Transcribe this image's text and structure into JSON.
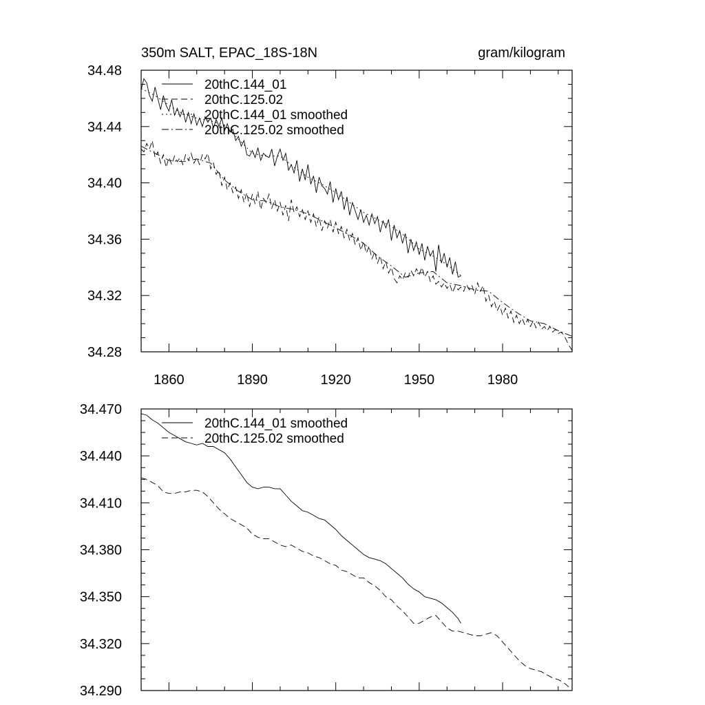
{
  "chart_data": [
    {
      "type": "line",
      "title": "350m SALT, EPAC_18S-18N",
      "units": "gram/kilogram",
      "xlim": [
        1850,
        2005
      ],
      "ylim": [
        34.28,
        34.48
      ],
      "xticks": [
        1860,
        1890,
        1920,
        1950,
        1980
      ],
      "yticks": [
        34.28,
        34.32,
        34.36,
        34.4,
        34.44,
        34.48
      ],
      "ytick_labels": [
        "34.28",
        "34.32",
        "34.36",
        "34.40",
        "34.44",
        "34.48"
      ],
      "xtick_labels": [
        "1860",
        "1890",
        "1920",
        "1950",
        "1980"
      ],
      "legend_position": "top-left",
      "series": [
        {
          "name": "20thC.144_01",
          "style": "solid",
          "x": [
            1850,
            1851,
            1852,
            1853,
            1854,
            1855,
            1856,
            1857,
            1858,
            1859,
            1860,
            1861,
            1862,
            1863,
            1864,
            1865,
            1866,
            1867,
            1868,
            1869,
            1870,
            1871,
            1872,
            1873,
            1874,
            1875,
            1876,
            1877,
            1878,
            1879,
            1880,
            1881,
            1882,
            1883,
            1884,
            1885,
            1886,
            1887,
            1888,
            1889,
            1890,
            1891,
            1892,
            1893,
            1894,
            1895,
            1896,
            1897,
            1898,
            1899,
            1900,
            1901,
            1902,
            1903,
            1904,
            1905,
            1906,
            1907,
            1908,
            1909,
            1910,
            1911,
            1912,
            1913,
            1914,
            1915,
            1916,
            1917,
            1918,
            1919,
            1920,
            1921,
            1922,
            1923,
            1924,
            1925,
            1926,
            1927,
            1928,
            1929,
            1930,
            1931,
            1932,
            1933,
            1934,
            1935,
            1936,
            1937,
            1938,
            1939,
            1940,
            1941,
            1942,
            1943,
            1944,
            1945,
            1946,
            1947,
            1948,
            1949,
            1950,
            1951,
            1952,
            1953,
            1954,
            1955,
            1956,
            1957,
            1958,
            1959,
            1960,
            1961,
            1962,
            1963,
            1964,
            1965
          ],
          "values": [
            34.466,
            34.474,
            34.471,
            34.462,
            34.458,
            34.468,
            34.46,
            34.452,
            34.462,
            34.455,
            34.451,
            34.459,
            34.448,
            34.453,
            34.447,
            34.452,
            34.443,
            34.45,
            34.442,
            34.449,
            34.441,
            34.446,
            34.44,
            34.447,
            34.443,
            34.446,
            34.439,
            34.445,
            34.44,
            34.446,
            34.437,
            34.442,
            34.436,
            34.438,
            34.43,
            34.433,
            34.426,
            34.43,
            34.42,
            34.419,
            34.423,
            34.418,
            34.425,
            34.416,
            34.421,
            34.419,
            34.418,
            34.424,
            34.412,
            34.419,
            34.424,
            34.416,
            34.421,
            34.409,
            34.413,
            34.407,
            34.416,
            34.401,
            34.41,
            34.402,
            34.413,
            34.399,
            34.405,
            34.393,
            34.404,
            34.398,
            34.396,
            34.392,
            34.401,
            34.386,
            34.396,
            34.388,
            34.394,
            34.381,
            34.39,
            34.377,
            34.386,
            34.38,
            34.374,
            34.381,
            34.372,
            34.377,
            34.37,
            34.378,
            34.371,
            34.376,
            34.365,
            34.373,
            34.368,
            34.374,
            34.359,
            34.37,
            34.361,
            34.366,
            34.357,
            34.364,
            34.35,
            34.36,
            34.352,
            34.358,
            34.349,
            34.357,
            34.345,
            34.355,
            34.348,
            34.352,
            34.337,
            34.356,
            34.343,
            34.35,
            34.34,
            34.347,
            34.335,
            34.344,
            34.333,
            34.334
          ]
        },
        {
          "name": "20thC.125.02",
          "style": "dashed",
          "x": [
            1850,
            1851,
            1852,
            1853,
            1854,
            1855,
            1856,
            1857,
            1858,
            1859,
            1860,
            1861,
            1862,
            1863,
            1864,
            1865,
            1866,
            1867,
            1868,
            1869,
            1870,
            1871,
            1872,
            1873,
            1874,
            1875,
            1876,
            1877,
            1878,
            1879,
            1880,
            1881,
            1882,
            1883,
            1884,
            1885,
            1886,
            1887,
            1888,
            1889,
            1890,
            1891,
            1892,
            1893,
            1894,
            1895,
            1896,
            1897,
            1898,
            1899,
            1900,
            1901,
            1902,
            1903,
            1904,
            1905,
            1906,
            1907,
            1908,
            1909,
            1910,
            1911,
            1912,
            1913,
            1914,
            1915,
            1916,
            1917,
            1918,
            1919,
            1920,
            1921,
            1922,
            1923,
            1924,
            1925,
            1926,
            1927,
            1928,
            1929,
            1930,
            1931,
            1932,
            1933,
            1934,
            1935,
            1936,
            1937,
            1938,
            1939,
            1940,
            1941,
            1942,
            1943,
            1944,
            1945,
            1946,
            1947,
            1948,
            1949,
            1950,
            1951,
            1952,
            1953,
            1954,
            1955,
            1956,
            1957,
            1958,
            1959,
            1960,
            1961,
            1962,
            1963,
            1964,
            1965,
            1966,
            1967,
            1968,
            1969,
            1970,
            1971,
            1972,
            1973,
            1974,
            1975,
            1976,
            1977,
            1978,
            1979,
            1980,
            1981,
            1982,
            1983,
            1984,
            1985,
            1986,
            1987,
            1988,
            1989,
            1990,
            1991,
            1992,
            1993,
            1994,
            1995,
            1996,
            1997,
            1998,
            1999,
            2000,
            2001,
            2002,
            2003,
            2004,
            2005
          ],
          "values": [
            34.424,
            34.422,
            34.428,
            34.424,
            34.43,
            34.418,
            34.422,
            34.414,
            34.42,
            34.411,
            34.418,
            34.413,
            34.419,
            34.415,
            34.418,
            34.413,
            34.42,
            34.416,
            34.421,
            34.414,
            34.418,
            34.413,
            34.42,
            34.417,
            34.421,
            34.41,
            34.414,
            34.406,
            34.409,
            34.398,
            34.404,
            34.395,
            34.4,
            34.393,
            34.397,
            34.389,
            34.395,
            34.386,
            34.393,
            34.383,
            34.392,
            34.385,
            34.394,
            34.381,
            34.389,
            34.386,
            34.392,
            34.382,
            34.388,
            34.38,
            34.386,
            34.377,
            34.384,
            34.373,
            34.388,
            34.379,
            34.383,
            34.376,
            34.381,
            34.374,
            34.38,
            34.372,
            34.378,
            34.369,
            34.376,
            34.366,
            34.373,
            34.368,
            34.374,
            34.365,
            34.372,
            34.364,
            34.369,
            34.361,
            34.367,
            34.359,
            34.364,
            34.356,
            34.361,
            34.352,
            34.358,
            34.35,
            34.355,
            34.346,
            34.351,
            34.343,
            34.348,
            34.339,
            34.344,
            34.336,
            34.34,
            34.332,
            34.329,
            34.334,
            34.331,
            34.336,
            34.333,
            34.338,
            34.334,
            34.339,
            34.335,
            34.34,
            34.333,
            34.337,
            34.33,
            34.334,
            34.328,
            34.33,
            34.326,
            34.329,
            34.325,
            34.328,
            34.322,
            34.327,
            34.324,
            34.326,
            34.323,
            34.328,
            34.324,
            34.327,
            34.321,
            34.329,
            34.323,
            34.327,
            34.316,
            34.32,
            34.312,
            34.316,
            34.309,
            34.313,
            34.306,
            34.311,
            34.304,
            34.309,
            34.301,
            34.306,
            34.3,
            34.304,
            34.299,
            34.303,
            34.298,
            34.302,
            34.297,
            34.301,
            34.296,
            34.298,
            34.295,
            34.298,
            34.294,
            34.296,
            34.293,
            34.294,
            34.292,
            34.288,
            34.284,
            34.281
          ]
        },
        {
          "name": "20thC.144_01 smoothed",
          "style": "dotted",
          "x": [
            1850,
            1855,
            1860,
            1865,
            1870,
            1875,
            1880,
            1885,
            1890,
            1895,
            1900,
            1905,
            1910,
            1915,
            1920,
            1925,
            1930,
            1935,
            1940,
            1945,
            1950,
            1955,
            1960,
            1965
          ],
          "values": [
            34.467,
            34.462,
            34.455,
            34.449,
            34.446,
            34.444,
            34.441,
            34.431,
            34.421,
            34.419,
            34.419,
            34.411,
            34.404,
            34.399,
            34.393,
            34.386,
            34.379,
            34.374,
            34.369,
            34.362,
            34.353,
            34.348,
            34.342,
            34.334
          ]
        },
        {
          "name": "20thC.125.02 smoothed",
          "style": "dashdot",
          "x": [
            1850,
            1855,
            1860,
            1865,
            1870,
            1875,
            1880,
            1885,
            1890,
            1895,
            1900,
            1905,
            1910,
            1915,
            1920,
            1925,
            1930,
            1935,
            1940,
            1945,
            1950,
            1955,
            1960,
            1965,
            1970,
            1975,
            1980,
            1985,
            1990,
            1995,
            2000,
            2005
          ],
          "values": [
            34.426,
            34.421,
            34.416,
            34.415,
            34.417,
            34.414,
            34.402,
            34.394,
            34.388,
            34.387,
            34.383,
            34.381,
            34.378,
            34.373,
            34.368,
            34.363,
            34.357,
            34.348,
            34.341,
            34.333,
            34.336,
            34.337,
            34.329,
            34.327,
            34.324,
            34.323,
            34.315,
            34.308,
            34.302,
            34.3,
            34.295,
            34.291
          ]
        }
      ]
    },
    {
      "type": "line",
      "xlim": [
        1850,
        2005
      ],
      "ylim": [
        34.29,
        34.47
      ],
      "yticks": [
        34.29,
        34.32,
        34.35,
        34.38,
        34.41,
        34.44,
        34.47
      ],
      "ytick_labels": [
        "34.290",
        "34.320",
        "34.350",
        "34.380",
        "34.410",
        "34.440",
        "34.470"
      ],
      "xticks": [
        1860,
        1890,
        1920,
        1950,
        1980
      ],
      "legend_position": "top-left",
      "series": [
        {
          "name": "20thC.144_01 smoothed",
          "style": "solid",
          "x": [
            1850,
            1852,
            1854,
            1856,
            1858,
            1860,
            1862,
            1864,
            1866,
            1868,
            1870,
            1872,
            1874,
            1876,
            1878,
            1880,
            1882,
            1884,
            1886,
            1888,
            1890,
            1892,
            1894,
            1896,
            1898,
            1900,
            1902,
            1904,
            1906,
            1908,
            1910,
            1912,
            1914,
            1916,
            1918,
            1920,
            1922,
            1924,
            1926,
            1928,
            1930,
            1932,
            1934,
            1936,
            1938,
            1940,
            1942,
            1944,
            1946,
            1948,
            1950,
            1952,
            1954,
            1956,
            1958,
            1960,
            1962,
            1964,
            1965
          ],
          "values": [
            34.467,
            34.466,
            34.463,
            34.461,
            34.458,
            34.455,
            34.453,
            34.451,
            34.449,
            34.448,
            34.447,
            34.448,
            34.446,
            34.446,
            34.444,
            34.442,
            34.438,
            34.433,
            34.428,
            34.423,
            34.42,
            34.419,
            34.42,
            34.42,
            34.419,
            34.419,
            34.415,
            34.411,
            34.408,
            34.405,
            34.404,
            34.402,
            34.4,
            34.399,
            34.396,
            34.393,
            34.389,
            34.386,
            34.383,
            34.38,
            34.377,
            34.375,
            34.374,
            34.373,
            34.371,
            34.368,
            34.365,
            34.362,
            34.358,
            34.355,
            34.353,
            34.35,
            34.349,
            34.348,
            34.346,
            34.343,
            34.34,
            34.336,
            34.333
          ]
        },
        {
          "name": "20thC.125.02 smoothed",
          "style": "dashed",
          "x": [
            1850,
            1852,
            1854,
            1856,
            1858,
            1860,
            1862,
            1864,
            1866,
            1868,
            1870,
            1872,
            1874,
            1876,
            1878,
            1880,
            1882,
            1884,
            1886,
            1888,
            1890,
            1892,
            1894,
            1896,
            1898,
            1900,
            1902,
            1904,
            1906,
            1908,
            1910,
            1912,
            1914,
            1916,
            1918,
            1920,
            1922,
            1924,
            1926,
            1928,
            1930,
            1932,
            1934,
            1936,
            1938,
            1940,
            1942,
            1944,
            1946,
            1948,
            1950,
            1952,
            1954,
            1956,
            1958,
            1960,
            1962,
            1964,
            1966,
            1968,
            1970,
            1972,
            1974,
            1976,
            1978,
            1980,
            1982,
            1984,
            1986,
            1988,
            1990,
            1992,
            1994,
            1996,
            1998,
            2000,
            2002,
            2004
          ],
          "values": [
            34.426,
            34.425,
            34.423,
            34.421,
            34.417,
            34.416,
            34.416,
            34.417,
            34.417,
            34.418,
            34.418,
            34.417,
            34.414,
            34.41,
            34.406,
            34.403,
            34.4,
            34.398,
            34.396,
            34.394,
            34.39,
            34.388,
            34.387,
            34.387,
            34.385,
            34.383,
            34.382,
            34.383,
            34.381,
            34.379,
            34.378,
            34.376,
            34.375,
            34.373,
            34.371,
            34.37,
            34.367,
            34.366,
            34.364,
            34.362,
            34.362,
            34.359,
            34.357,
            34.354,
            34.35,
            34.348,
            34.344,
            34.341,
            34.337,
            34.333,
            34.333,
            34.335,
            34.337,
            34.338,
            34.334,
            34.33,
            34.328,
            34.328,
            34.327,
            34.326,
            34.325,
            34.325,
            34.326,
            34.327,
            34.325,
            34.321,
            34.317,
            34.313,
            34.309,
            34.306,
            34.304,
            34.303,
            34.302,
            34.3,
            34.298,
            34.297,
            34.295,
            34.292
          ]
        }
      ]
    }
  ]
}
